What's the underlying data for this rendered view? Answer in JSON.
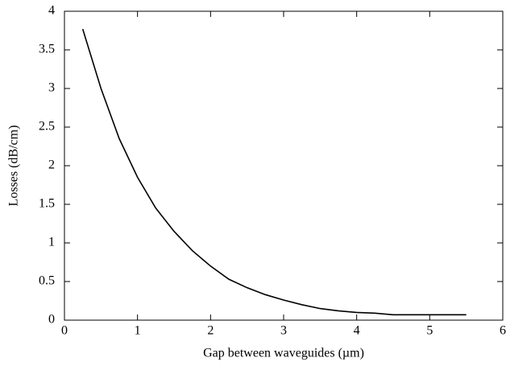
{
  "chart_data": {
    "type": "line",
    "xlabel": "Gap between waveguides (µm)",
    "ylabel": "Losses (dB/cm)",
    "x": [
      0.25,
      0.5,
      0.75,
      1.0,
      1.25,
      1.5,
      1.75,
      2.0,
      2.25,
      2.5,
      2.75,
      3.0,
      3.25,
      3.5,
      3.75,
      4.0,
      4.25,
      4.5,
      5.0,
      5.5
    ],
    "values": [
      3.77,
      3.0,
      2.35,
      1.85,
      1.45,
      1.15,
      0.9,
      0.7,
      0.53,
      0.42,
      0.33,
      0.26,
      0.2,
      0.15,
      0.12,
      0.1,
      0.09,
      0.07,
      0.07,
      0.07
    ],
    "color": "#000000",
    "xlim": [
      0,
      6
    ],
    "xticks": [
      0,
      1,
      2,
      3,
      4,
      5,
      6
    ],
    "ylim": [
      0,
      4
    ],
    "yticks": [
      0,
      0.5,
      1,
      1.5,
      2,
      2.5,
      3,
      3.5,
      4
    ]
  }
}
